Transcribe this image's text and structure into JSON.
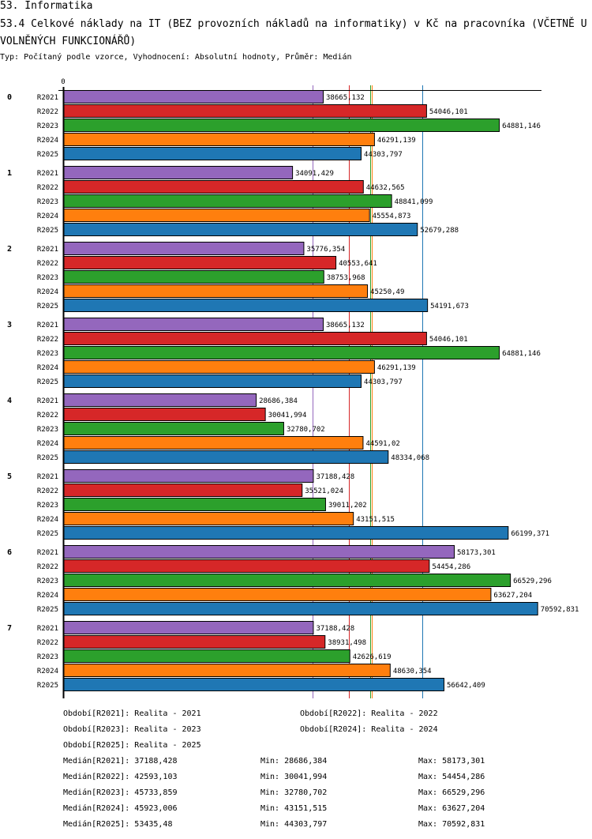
{
  "header": {
    "section": "53. Informatika",
    "title": "53.4 Celkové náklady na IT (BEZ provozních nákladů na informatiky) v Kč na pracovníka (VČETNĚ UVOLNĚNÝCH FUNKCIONÁŘŮ)",
    "subtitle": "Typ: Počítaný podle vzorce, Vyhodnocení: Absolutní hodnoty, Průměr: Medián"
  },
  "chart_data": {
    "type": "bar",
    "orientation": "horizontal",
    "title": "53.4 Celkové náklady na IT (BEZ provozních nákladů na informatiky) v Kč na pracovníka (VČETNĚ UVOLNĚNÝCH FUNKCIONÁŘŮ)",
    "axis_zero_label": "0",
    "xlim": [
      0,
      70592.831
    ],
    "groups": [
      "0",
      "1",
      "2",
      "3",
      "4",
      "5",
      "6",
      "7"
    ],
    "series": [
      {
        "name": "R2021",
        "color": "#9467bd",
        "values": [
          38665.132,
          34091.429,
          35776.354,
          38665.132,
          28686.384,
          37188.428,
          58173.301,
          37188.428
        ],
        "labels": [
          "38665,132",
          "34091,429",
          "35776,354",
          "38665,132",
          "28686,384",
          "37188,428",
          "58173,301",
          "37188,428"
        ]
      },
      {
        "name": "R2022",
        "color": "#d62728",
        "values": [
          54046.101,
          44632.565,
          40553.641,
          54046.101,
          30041.994,
          35521.024,
          54454.286,
          38931.498
        ],
        "labels": [
          "54046,101",
          "44632,565",
          "40553,641",
          "54046,101",
          "30041,994",
          "35521,024",
          "54454,286",
          "38931,498"
        ]
      },
      {
        "name": "R2023",
        "color": "#2ca02c",
        "values": [
          64881.146,
          48841.099,
          38753.968,
          64881.146,
          32780.702,
          39011.202,
          66529.296,
          42626.619
        ],
        "labels": [
          "64881,146",
          "48841,099",
          "38753,968",
          "64881,146",
          "32780,702",
          "39011,202",
          "66529,296",
          "42626,619"
        ]
      },
      {
        "name": "R2024",
        "color": "#ff7f0e",
        "values": [
          46291.139,
          45554.873,
          45250.49,
          46291.139,
          44591.02,
          43151.515,
          63627.204,
          48630.354
        ],
        "labels": [
          "46291,139",
          "45554,873",
          "45250,49",
          "46291,139",
          "44591,02",
          "43151,515",
          "63627,204",
          "48630,354"
        ]
      },
      {
        "name": "R2025",
        "color": "#1f77b4",
        "values": [
          44303.797,
          52679.288,
          54191.673,
          44303.797,
          48334.068,
          66199.371,
          70592.831,
          56642.409
        ],
        "labels": [
          "44303,797",
          "52679,288",
          "54191,673",
          "44303,797",
          "48334,068",
          "66199,371",
          "70592,831",
          "56642,409"
        ]
      }
    ],
    "medians": [
      {
        "series": "R2021",
        "value": 37188.428
      },
      {
        "series": "R2022",
        "value": 42593.103
      },
      {
        "series": "R2023",
        "value": 45733.859
      },
      {
        "series": "R2024",
        "value": 45923.006
      },
      {
        "series": "R2025",
        "value": 53435.48
      }
    ]
  },
  "legend": {
    "periods": [
      "Období[R2021]: Realita - 2021",
      "Období[R2022]: Realita - 2022",
      "Období[R2023]: Realita - 2023",
      "Období[R2024]: Realita - 2024",
      "Období[R2025]: Realita - 2025"
    ],
    "stats": [
      {
        "median": "Medián[R2021]: 37188,428",
        "min": "Min: 28686,384",
        "max": "Max: 58173,301"
      },
      {
        "median": "Medián[R2022]: 42593,103",
        "min": "Min: 30041,994",
        "max": "Max: 54454,286"
      },
      {
        "median": "Medián[R2023]: 45733,859",
        "min": "Min: 32780,702",
        "max": "Max: 66529,296"
      },
      {
        "median": "Medián[R2024]: 45923,006",
        "min": "Min: 43151,515",
        "max": "Max: 63627,204"
      },
      {
        "median": "Medián[R2025]: 53435,48",
        "min": "Min: 44303,797",
        "max": "Max: 70592,831"
      }
    ]
  }
}
